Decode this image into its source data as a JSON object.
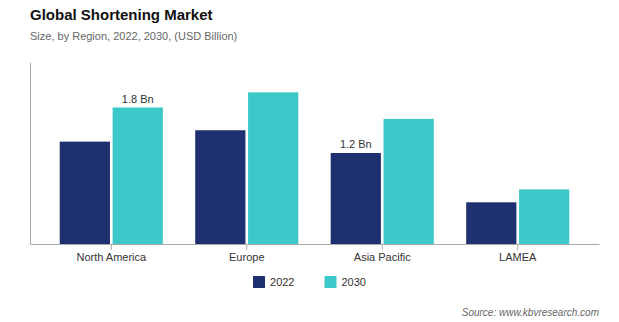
{
  "chart_data": {
    "type": "bar",
    "title": "Global Shortening Market",
    "subtitle": "Size, by Region, 2022, 2030, (USD Billion)",
    "source": "Source: www.kbvresearch.com",
    "categories": [
      "North America",
      "Europe",
      "Asia Pacific",
      "LAMEA"
    ],
    "series": [
      {
        "name": "2022",
        "color": "#1e3070",
        "values": [
          1.35,
          1.5,
          1.2,
          0.55
        ]
      },
      {
        "name": "2030",
        "color": "#3cc8c8",
        "values": [
          1.8,
          2.0,
          1.65,
          0.72
        ]
      }
    ],
    "annotations": [
      {
        "category": "North America",
        "series": "2030",
        "text": "1.8 Bn"
      },
      {
        "category": "Asia Pacific",
        "series": "2022",
        "text": "1.2 Bn"
      }
    ],
    "ylim": [
      0,
      2.4
    ],
    "grid": false,
    "legend": "bottom",
    "tick_labels": "x"
  }
}
